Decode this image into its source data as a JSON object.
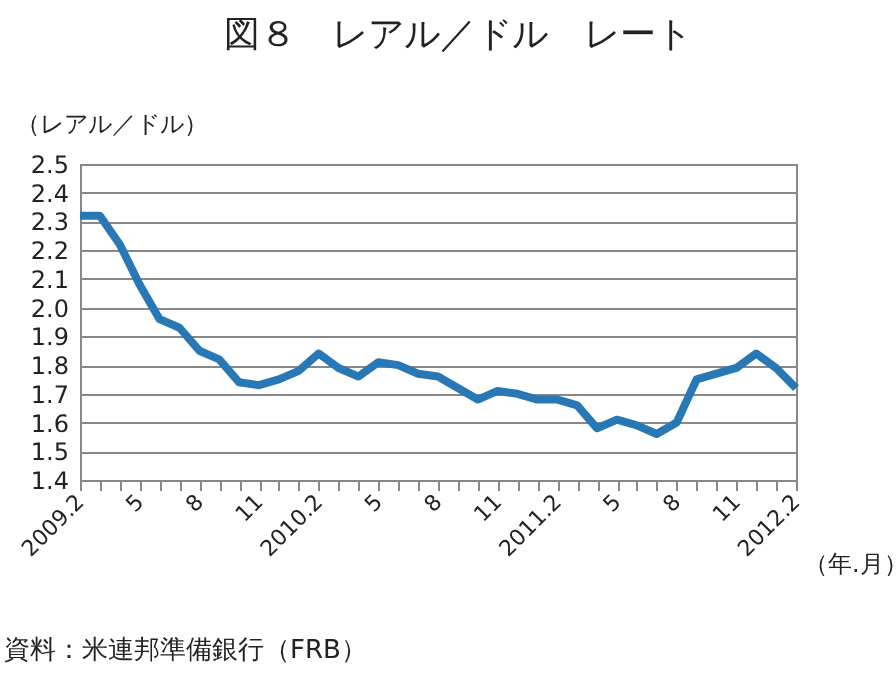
{
  "chart_data": {
    "type": "line",
    "title": "図８　レアル／ドル　レート",
    "ylabel": "（レアル／ドル）",
    "xlabel": "（年.月）",
    "annotations": [
      "資料：米連邦準備銀行（FRB）"
    ],
    "categories": [
      "2009.2",
      null,
      null,
      "5",
      null,
      null,
      "8",
      null,
      null,
      "11",
      null,
      null,
      "2010.2",
      null,
      null,
      "5",
      null,
      null,
      "8",
      null,
      null,
      "11",
      null,
      null,
      "2011.2",
      null,
      null,
      "5",
      null,
      null,
      "8",
      null,
      null,
      "11",
      null,
      null,
      "2012.2"
    ],
    "series": [
      {
        "color": "#2878b5",
        "values": [
          2.32,
          2.32,
          2.22,
          2.08,
          1.96,
          1.93,
          1.85,
          1.82,
          1.74,
          1.73,
          1.75,
          1.78,
          1.84,
          1.79,
          1.76,
          1.81,
          1.8,
          1.77,
          1.76,
          1.72,
          1.68,
          1.71,
          1.7,
          1.68,
          1.68,
          1.66,
          1.58,
          1.61,
          1.59,
          1.56,
          1.6,
          1.75,
          1.77,
          1.79,
          1.84,
          1.79,
          1.72
        ]
      }
    ],
    "ylim": [
      1.4,
      2.5
    ],
    "yticks": [
      1.4,
      1.5,
      1.6,
      1.7,
      1.8,
      1.9,
      {
        "value": 2.0,
        "label": "2.0"
      },
      2.1,
      2.2,
      2.3,
      2.4,
      2.5
    ],
    "grid": "y",
    "marker": "none",
    "line_style": "solid"
  }
}
